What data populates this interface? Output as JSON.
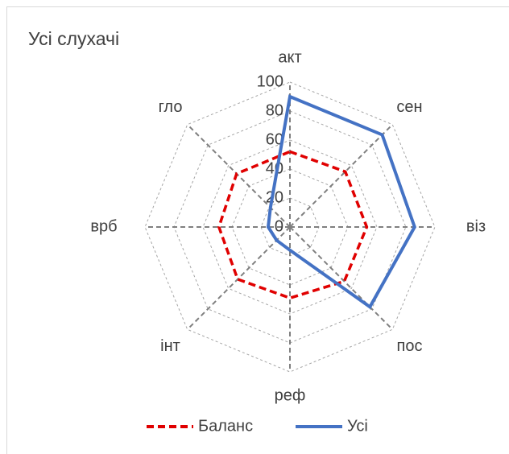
{
  "chart_data": {
    "type": "radar",
    "title": "Усі слухачі",
    "categories": [
      "акт",
      "сен",
      "віз",
      "пос",
      "реф",
      "інт",
      "врб",
      "гло"
    ],
    "series": [
      {
        "name": "Баланс",
        "color": "#e00000",
        "values": [
          52,
          54,
          53,
          53,
          49,
          51,
          49,
          52
        ]
      },
      {
        "name": "Усі",
        "color": "#4472c4",
        "values": [
          90,
          90,
          86,
          78,
          16,
          13,
          15,
          19
        ]
      }
    ],
    "ylim": [
      0,
      100
    ],
    "yticks": [
      0,
      20,
      40,
      60,
      80,
      100
    ],
    "grid": true,
    "legend": "bottom"
  }
}
